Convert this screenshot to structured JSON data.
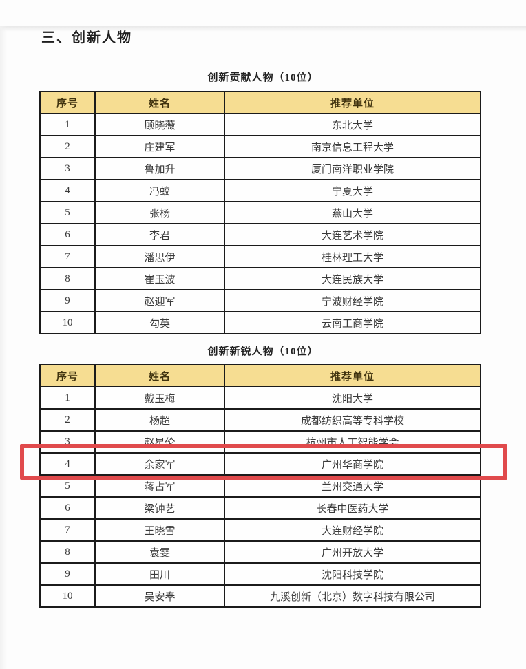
{
  "section_title": "三、创新人物",
  "colors": {
    "header_bg": "#f6dd92",
    "table_border": "#1b1b1b",
    "highlight_red": "#e04a4c"
  },
  "tables": [
    {
      "title": "创新贡献人物（10位）",
      "headers": [
        "序号",
        "姓名",
        "推荐单位"
      ],
      "rows": [
        [
          "1",
          "顾晓薇",
          "东北大学"
        ],
        [
          "2",
          "庄建军",
          "南京信息工程大学"
        ],
        [
          "3",
          "鲁加升",
          "厦门南洋职业学院"
        ],
        [
          "4",
          "冯蛟",
          "宁夏大学"
        ],
        [
          "5",
          "张杨",
          "燕山大学"
        ],
        [
          "6",
          "李君",
          "大连艺术学院"
        ],
        [
          "7",
          "潘思伊",
          "桂林理工大学"
        ],
        [
          "8",
          "崔玉波",
          "大连民族大学"
        ],
        [
          "9",
          "赵迎军",
          "宁波财经学院"
        ],
        [
          "10",
          "勾英",
          "云南工商学院"
        ]
      ]
    },
    {
      "title": "创新新锐人物（10位）",
      "headers": [
        "序号",
        "姓名",
        "推荐单位"
      ],
      "highlighted_row_number": "4",
      "rows": [
        [
          "1",
          "戴玉梅",
          "沈阳大学"
        ],
        [
          "2",
          "杨超",
          "成都纺织高等专科学校"
        ],
        [
          "3",
          "赵星伦",
          "杭州市人工智能学会"
        ],
        [
          "4",
          "余家军",
          "广州华商学院"
        ],
        [
          "5",
          "蒋占军",
          "兰州交通大学"
        ],
        [
          "6",
          "梁钟艺",
          "长春中医药大学"
        ],
        [
          "7",
          "王晓雪",
          "大连财经学院"
        ],
        [
          "8",
          "袁雯",
          "广州开放大学"
        ],
        [
          "9",
          "田川",
          "沈阳科技学院"
        ],
        [
          "10",
          "吴安奉",
          "九溪创新（北京）数字科技有限公司"
        ]
      ]
    }
  ]
}
